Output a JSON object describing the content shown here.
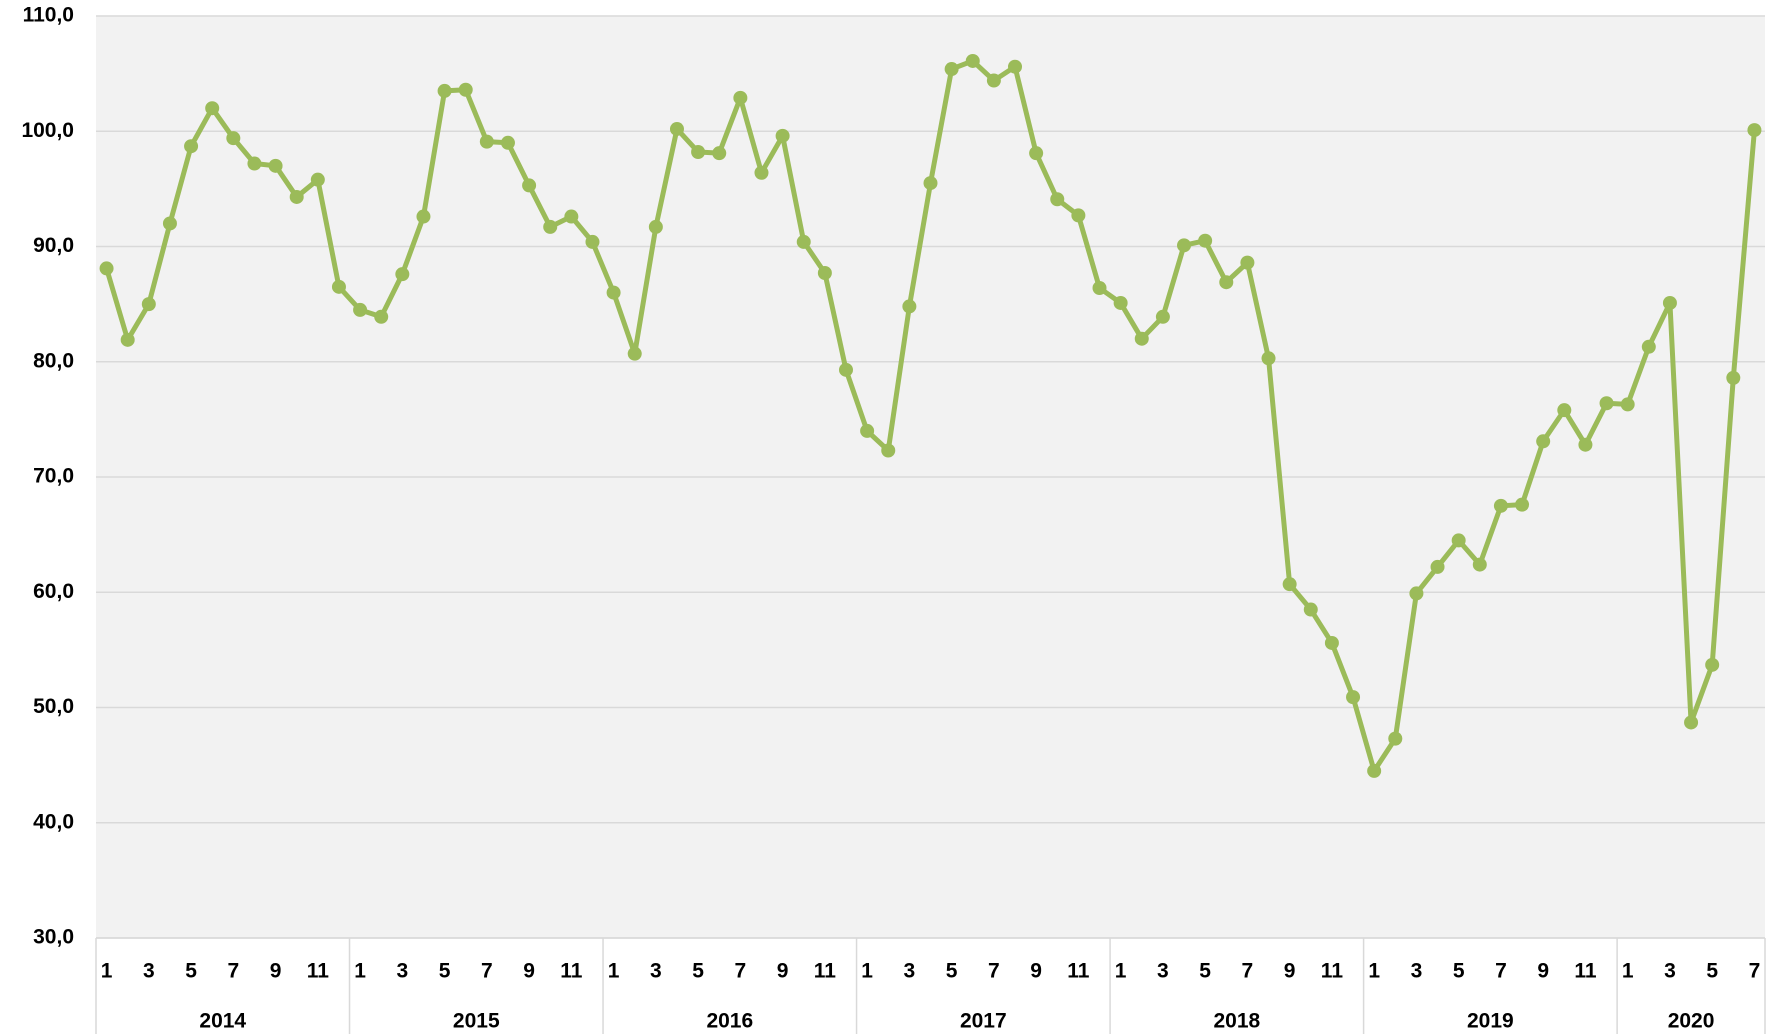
{
  "chart_data": {
    "type": "line",
    "categories": [
      "1",
      null,
      "3",
      null,
      "5",
      null,
      "7",
      null,
      "9",
      null,
      "11",
      null,
      "1",
      null,
      "3",
      null,
      "5",
      null,
      "7",
      null,
      "9",
      null,
      "11",
      null,
      "1",
      null,
      "3",
      null,
      "5",
      null,
      "7",
      null,
      "9",
      null,
      "11",
      null,
      "1",
      null,
      "3",
      null,
      "5",
      null,
      "7",
      null,
      "9",
      null,
      "11",
      null,
      "1",
      null,
      "3",
      null,
      "5",
      null,
      "7",
      null,
      "9",
      null,
      "11",
      null,
      "1",
      null,
      "3",
      null,
      "5",
      null,
      "7",
      null,
      "9",
      null,
      "11",
      null,
      "1",
      null,
      "3",
      null,
      "5",
      null,
      "7"
    ],
    "years": [
      "2014",
      "2015",
      "2016",
      "2017",
      "2018",
      "2019",
      "2020"
    ],
    "values": [
      88.1,
      81.9,
      85.0,
      92.0,
      98.7,
      102.0,
      99.4,
      97.2,
      97.0,
      94.3,
      95.8,
      86.5,
      84.5,
      83.9,
      87.6,
      92.6,
      103.5,
      103.6,
      99.1,
      99.0,
      95.3,
      91.7,
      92.6,
      90.4,
      86.0,
      80.7,
      91.7,
      100.2,
      98.2,
      98.1,
      102.9,
      96.4,
      99.6,
      90.4,
      87.7,
      79.3,
      74.0,
      72.3,
      84.8,
      95.5,
      105.4,
      106.1,
      104.4,
      105.6,
      98.1,
      94.1,
      92.7,
      86.4,
      85.1,
      82.0,
      83.9,
      90.1,
      90.5,
      86.9,
      88.6,
      80.3,
      60.7,
      58.5,
      55.6,
      50.9,
      44.5,
      47.3,
      59.9,
      62.2,
      64.5,
      62.4,
      67.5,
      67.6,
      73.1,
      75.8,
      72.8,
      76.4,
      76.3,
      81.3,
      85.1,
      48.7,
      53.7,
      78.6,
      100.1
    ],
    "color": "#9bbb59",
    "ylim": [
      30,
      110
    ],
    "yticks": [
      {
        "value": 30,
        "label": "30,0"
      },
      {
        "value": 40,
        "label": "40,0"
      },
      {
        "value": 50,
        "label": "50,0"
      },
      {
        "value": 60,
        "label": "60,0"
      },
      {
        "value": 70,
        "label": "70,0"
      },
      {
        "value": 80,
        "label": "80,0"
      },
      {
        "value": 90,
        "label": "90,0"
      },
      {
        "value": 100,
        "label": "100,0"
      },
      {
        "value": 110,
        "label": "110,0"
      }
    ],
    "grid": true
  }
}
